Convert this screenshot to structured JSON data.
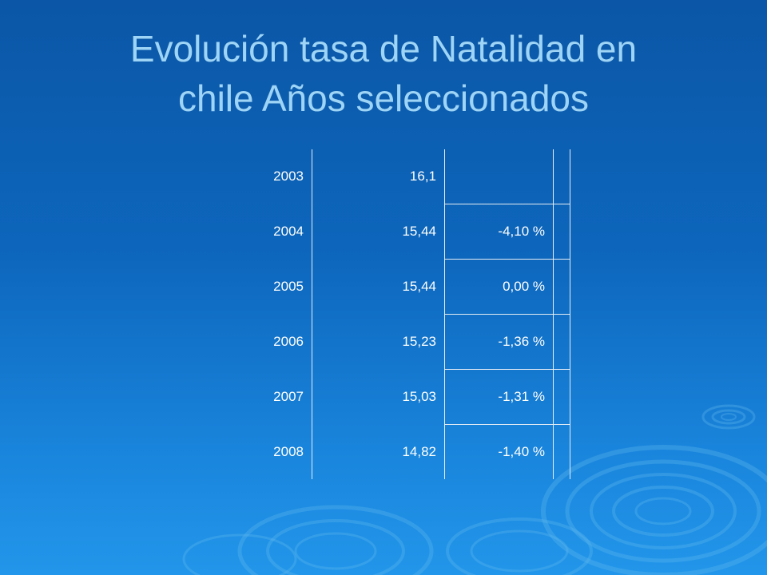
{
  "slide": {
    "title_line1": "Evolución tasa de  Natalidad en",
    "title_line2": "chile Años seleccionados"
  },
  "table": {
    "rows": [
      {
        "year": "2003",
        "rate": "16,1",
        "change": ""
      },
      {
        "year": "2004",
        "rate": "15,44",
        "change": "-4,10 %"
      },
      {
        "year": "2005",
        "rate": "15,44",
        "change": "0,00 %"
      },
      {
        "year": "2006",
        "rate": "15,23",
        "change": "-1,36 %"
      },
      {
        "year": "2007",
        "rate": "15,03",
        "change": "-1,31 %"
      },
      {
        "year": "2008",
        "rate": "14,82",
        "change": "-1,40 %"
      }
    ]
  },
  "colors": {
    "background_top": "#0b56a6",
    "background_bottom": "#2296ea",
    "title": "#9ed4f5",
    "table_text": "#ffffff",
    "lines": "#e6edf5"
  }
}
